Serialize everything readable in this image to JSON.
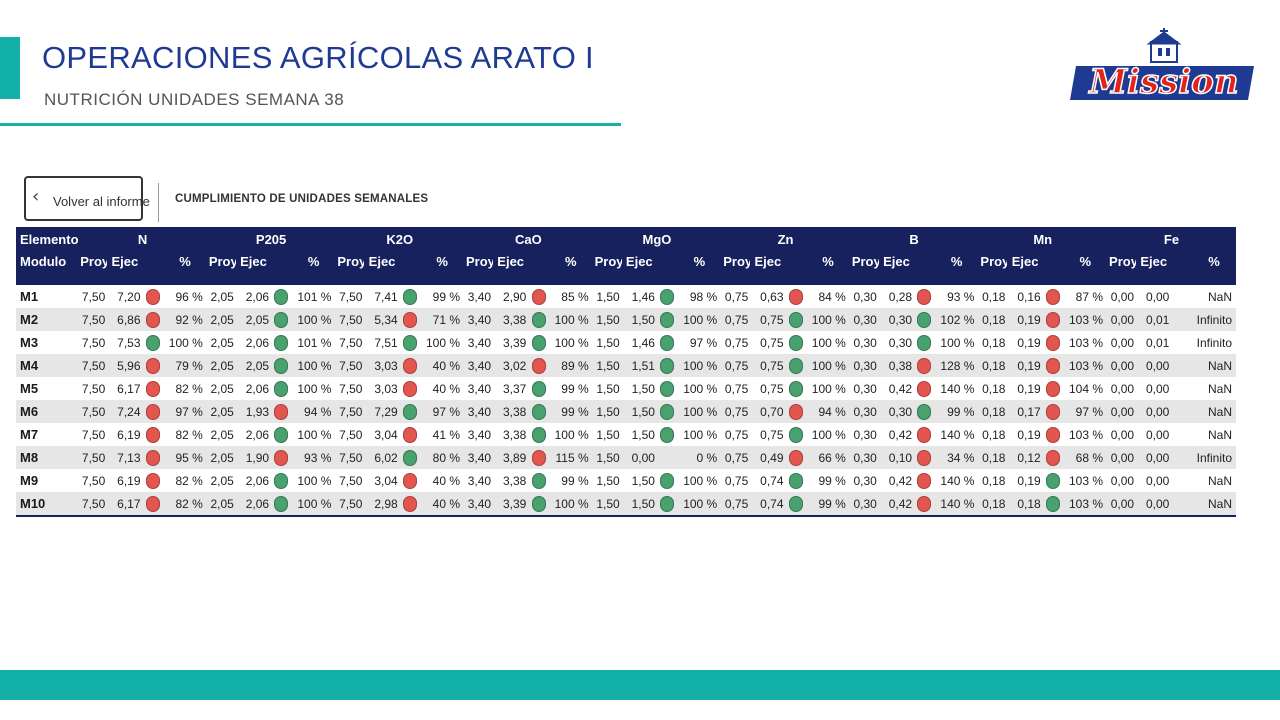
{
  "header": {
    "title": "OPERACIONES AGRÍCOLAS ARATO I",
    "subtitle": "NUTRICIÓN UNIDADES SEMANA  38",
    "logo_text": "Mission"
  },
  "toolbar": {
    "back_label": "Volver al informe",
    "section_title": "CUMPLIMIENTO DE UNIDADES SEMANALES"
  },
  "colors": {
    "brand_blue": "#1f3a93",
    "accent_teal": "#12b0a6",
    "table_header": "#16215e",
    "status_red": "#e3564f",
    "status_green": "#48a16e"
  },
  "table": {
    "row_header_top": "Elemento",
    "row_header_bottom": "Modulo",
    "elements": [
      "N",
      "P205",
      "K2O",
      "CaO",
      "MgO",
      "Zn",
      "B",
      "Mn",
      "Fe"
    ],
    "sub_headers": {
      "proy": "Proy",
      "ejec": "Ejec",
      "pct": "%"
    },
    "rows": [
      {
        "modulo": "M1",
        "cells": [
          [
            "7,50",
            "7,20",
            "red",
            "96 %"
          ],
          [
            "2,05",
            "2,06",
            "green",
            "101 %"
          ],
          [
            "7,50",
            "7,41",
            "green",
            "99 %"
          ],
          [
            "3,40",
            "2,90",
            "red",
            "85 %"
          ],
          [
            "1,50",
            "1,46",
            "green",
            "98 %"
          ],
          [
            "0,75",
            "0,63",
            "red",
            "84 %"
          ],
          [
            "0,30",
            "0,28",
            "red",
            "93 %"
          ],
          [
            "0,18",
            "0,16",
            "red",
            "87 %"
          ],
          [
            "0,00",
            "0,00",
            "",
            "NaN"
          ]
        ]
      },
      {
        "modulo": "M2",
        "cells": [
          [
            "7,50",
            "6,86",
            "red",
            "92 %"
          ],
          [
            "2,05",
            "2,05",
            "green",
            "100 %"
          ],
          [
            "7,50",
            "5,34",
            "red",
            "71 %"
          ],
          [
            "3,40",
            "3,38",
            "green",
            "100 %"
          ],
          [
            "1,50",
            "1,50",
            "green",
            "100 %"
          ],
          [
            "0,75",
            "0,75",
            "green",
            "100 %"
          ],
          [
            "0,30",
            "0,30",
            "green",
            "102 %"
          ],
          [
            "0,18",
            "0,19",
            "red",
            "103 %"
          ],
          [
            "0,00",
            "0,01",
            "",
            "Infinito"
          ]
        ]
      },
      {
        "modulo": "M3",
        "cells": [
          [
            "7,50",
            "7,53",
            "green",
            "100 %"
          ],
          [
            "2,05",
            "2,06",
            "green",
            "101 %"
          ],
          [
            "7,50",
            "7,51",
            "green",
            "100 %"
          ],
          [
            "3,40",
            "3,39",
            "green",
            "100 %"
          ],
          [
            "1,50",
            "1,46",
            "green",
            "97 %"
          ],
          [
            "0,75",
            "0,75",
            "green",
            "100 %"
          ],
          [
            "0,30",
            "0,30",
            "green",
            "100 %"
          ],
          [
            "0,18",
            "0,19",
            "red",
            "103 %"
          ],
          [
            "0,00",
            "0,01",
            "",
            "Infinito"
          ]
        ]
      },
      {
        "modulo": "M4",
        "cells": [
          [
            "7,50",
            "5,96",
            "red",
            "79 %"
          ],
          [
            "2,05",
            "2,05",
            "green",
            "100 %"
          ],
          [
            "7,50",
            "3,03",
            "red",
            "40 %"
          ],
          [
            "3,40",
            "3,02",
            "red",
            "89 %"
          ],
          [
            "1,50",
            "1,51",
            "green",
            "100 %"
          ],
          [
            "0,75",
            "0,75",
            "green",
            "100 %"
          ],
          [
            "0,30",
            "0,38",
            "red",
            "128 %"
          ],
          [
            "0,18",
            "0,19",
            "red",
            "103 %"
          ],
          [
            "0,00",
            "0,00",
            "",
            "NaN"
          ]
        ]
      },
      {
        "modulo": "M5",
        "cells": [
          [
            "7,50",
            "6,17",
            "red",
            "82 %"
          ],
          [
            "2,05",
            "2,06",
            "green",
            "100 %"
          ],
          [
            "7,50",
            "3,03",
            "red",
            "40 %"
          ],
          [
            "3,40",
            "3,37",
            "green",
            "99 %"
          ],
          [
            "1,50",
            "1,50",
            "green",
            "100 %"
          ],
          [
            "0,75",
            "0,75",
            "green",
            "100 %"
          ],
          [
            "0,30",
            "0,42",
            "red",
            "140 %"
          ],
          [
            "0,18",
            "0,19",
            "red",
            "104 %"
          ],
          [
            "0,00",
            "0,00",
            "",
            "NaN"
          ]
        ]
      },
      {
        "modulo": "M6",
        "cells": [
          [
            "7,50",
            "7,24",
            "red",
            "97 %"
          ],
          [
            "2,05",
            "1,93",
            "red",
            "94 %"
          ],
          [
            "7,50",
            "7,29",
            "green",
            "97 %"
          ],
          [
            "3,40",
            "3,38",
            "green",
            "99 %"
          ],
          [
            "1,50",
            "1,50",
            "green",
            "100 %"
          ],
          [
            "0,75",
            "0,70",
            "red",
            "94 %"
          ],
          [
            "0,30",
            "0,30",
            "green",
            "99 %"
          ],
          [
            "0,18",
            "0,17",
            "red",
            "97 %"
          ],
          [
            "0,00",
            "0,00",
            "",
            "NaN"
          ]
        ]
      },
      {
        "modulo": "M7",
        "cells": [
          [
            "7,50",
            "6,19",
            "red",
            "82 %"
          ],
          [
            "2,05",
            "2,06",
            "green",
            "100 %"
          ],
          [
            "7,50",
            "3,04",
            "red",
            "41 %"
          ],
          [
            "3,40",
            "3,38",
            "green",
            "100 %"
          ],
          [
            "1,50",
            "1,50",
            "green",
            "100 %"
          ],
          [
            "0,75",
            "0,75",
            "green",
            "100 %"
          ],
          [
            "0,30",
            "0,42",
            "red",
            "140 %"
          ],
          [
            "0,18",
            "0,19",
            "red",
            "103 %"
          ],
          [
            "0,00",
            "0,00",
            "",
            "NaN"
          ]
        ]
      },
      {
        "modulo": "M8",
        "cells": [
          [
            "7,50",
            "7,13",
            "red",
            "95 %"
          ],
          [
            "2,05",
            "1,90",
            "red",
            "93 %"
          ],
          [
            "7,50",
            "6,02",
            "green",
            "80 %"
          ],
          [
            "3,40",
            "3,89",
            "red",
            "115 %"
          ],
          [
            "1,50",
            "0,00",
            "",
            "0 %"
          ],
          [
            "0,75",
            "0,49",
            "red",
            "66 %"
          ],
          [
            "0,30",
            "0,10",
            "red",
            "34 %"
          ],
          [
            "0,18",
            "0,12",
            "red",
            "68 %"
          ],
          [
            "0,00",
            "0,00",
            "",
            "Infinito"
          ]
        ]
      },
      {
        "modulo": "M9",
        "cells": [
          [
            "7,50",
            "6,19",
            "red",
            "82 %"
          ],
          [
            "2,05",
            "2,06",
            "green",
            "100 %"
          ],
          [
            "7,50",
            "3,04",
            "red",
            "40 %"
          ],
          [
            "3,40",
            "3,38",
            "green",
            "99 %"
          ],
          [
            "1,50",
            "1,50",
            "green",
            "100 %"
          ],
          [
            "0,75",
            "0,74",
            "green",
            "99 %"
          ],
          [
            "0,30",
            "0,42",
            "red",
            "140 %"
          ],
          [
            "0,18",
            "0,19",
            "green",
            "103 %"
          ],
          [
            "0,00",
            "0,00",
            "",
            "NaN"
          ]
        ]
      },
      {
        "modulo": "M10",
        "cells": [
          [
            "7,50",
            "6,17",
            "red",
            "82 %"
          ],
          [
            "2,05",
            "2,06",
            "green",
            "100 %"
          ],
          [
            "7,50",
            "2,98",
            "red",
            "40 %"
          ],
          [
            "3,40",
            "3,39",
            "green",
            "100 %"
          ],
          [
            "1,50",
            "1,50",
            "green",
            "100 %"
          ],
          [
            "0,75",
            "0,74",
            "green",
            "99 %"
          ],
          [
            "0,30",
            "0,42",
            "red",
            "140 %"
          ],
          [
            "0,18",
            "0,18",
            "green",
            "103 %"
          ],
          [
            "0,00",
            "0,00",
            "",
            "NaN"
          ]
        ]
      }
    ]
  }
}
